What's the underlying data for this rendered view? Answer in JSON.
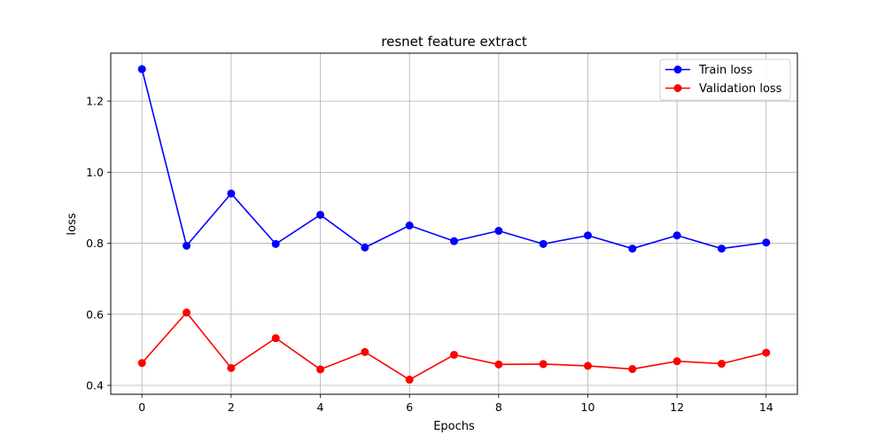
{
  "chart_data": {
    "type": "line",
    "title": "resnet feature extract",
    "xlabel": "Epochs",
    "ylabel": "loss",
    "xlim": [
      -0.7,
      14.7
    ],
    "ylim": [
      0.375,
      1.335
    ],
    "xticks": [
      0,
      2,
      4,
      6,
      8,
      10,
      12,
      14
    ],
    "yticks": [
      0.4,
      0.6,
      0.8,
      1.0,
      1.2
    ],
    "grid": true,
    "legend_position": "top-right",
    "x": [
      0,
      1,
      2,
      3,
      4,
      5,
      6,
      7,
      8,
      9,
      10,
      11,
      12,
      13,
      14
    ],
    "series": [
      {
        "name": "Train loss",
        "color": "#0000ff",
        "values": [
          1.29,
          0.793,
          0.94,
          0.798,
          0.88,
          0.788,
          0.85,
          0.806,
          0.835,
          0.798,
          0.822,
          0.785,
          0.822,
          0.785,
          0.802
        ]
      },
      {
        "name": "Validation loss",
        "color": "#ff0000",
        "values": [
          0.463,
          0.605,
          0.449,
          0.533,
          0.445,
          0.494,
          0.416,
          0.486,
          0.459,
          0.46,
          0.455,
          0.446,
          0.468,
          0.461,
          0.492
        ]
      }
    ]
  }
}
